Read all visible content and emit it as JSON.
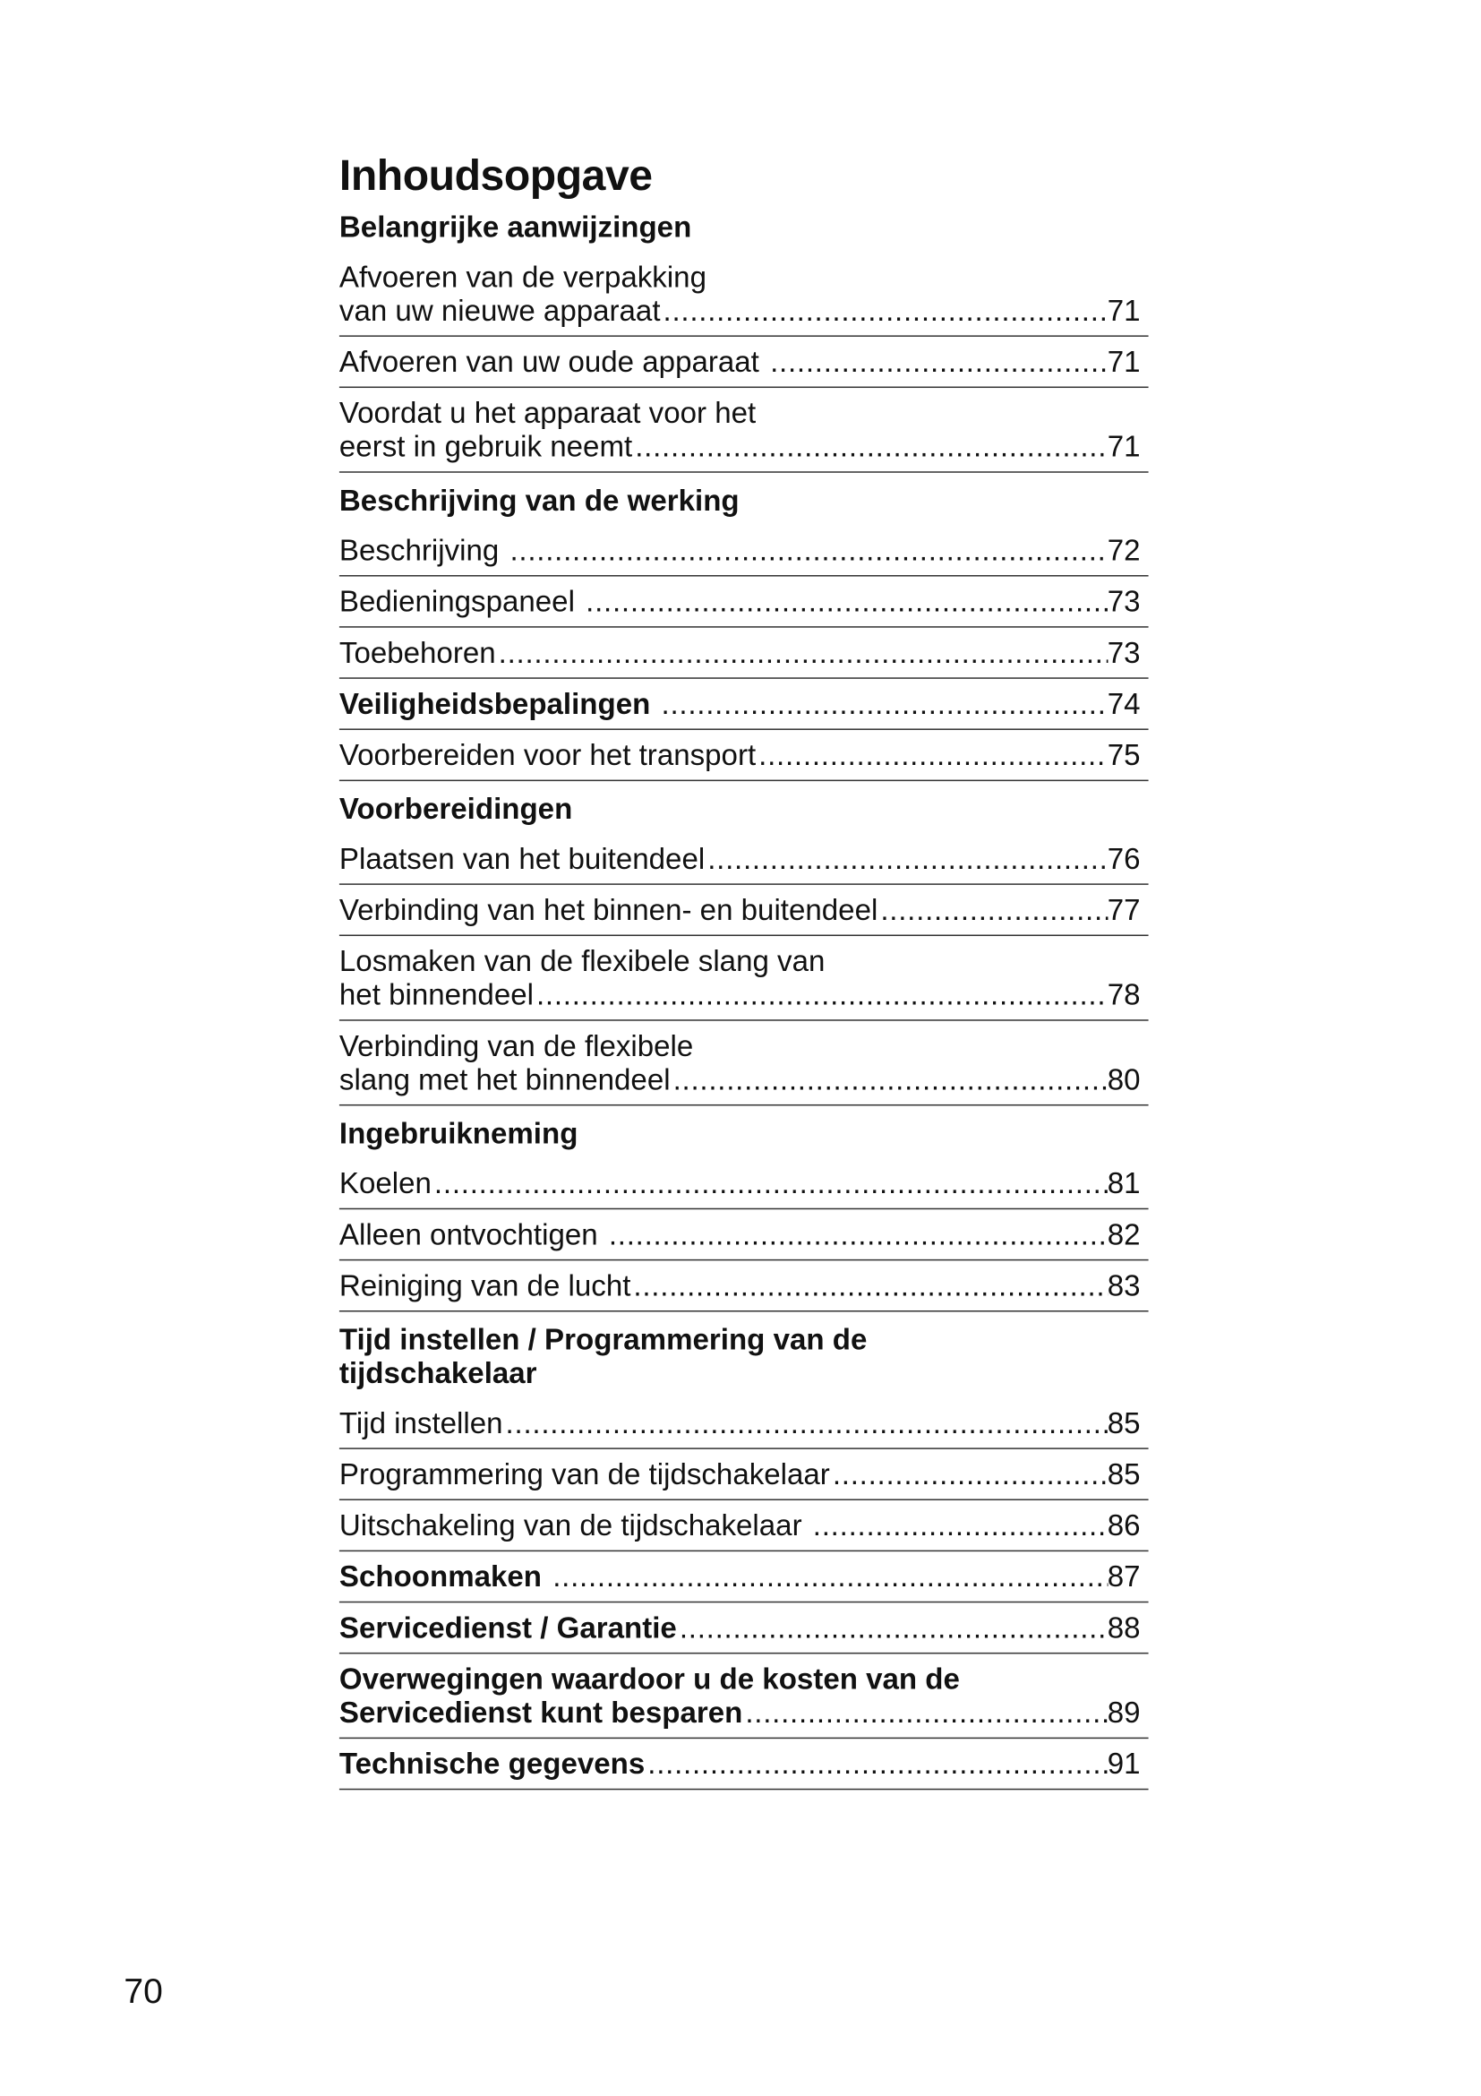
{
  "title": "Inhoudsopgave",
  "page_number": "70",
  "sections": [
    {
      "type": "heading",
      "lines": [
        "Belangrijke aanwijzingen"
      ]
    },
    {
      "type": "entry",
      "lines": [
        "Afvoeren van de verpakking",
        "van uw nieuwe apparaat"
      ],
      "page": "71"
    },
    {
      "type": "entry",
      "lines": [
        "Afvoeren van uw oude apparaat "
      ],
      "page": "71"
    },
    {
      "type": "entry",
      "lines": [
        "Voordat u het apparaat voor het",
        "eerst in gebruik neemt"
      ],
      "page": "71"
    },
    {
      "type": "heading",
      "lines": [
        "Beschrijving van de werking"
      ]
    },
    {
      "type": "entry",
      "lines": [
        "Beschrijving "
      ],
      "page": "72"
    },
    {
      "type": "entry",
      "lines": [
        "Bedieningspaneel "
      ],
      "page": "73"
    },
    {
      "type": "entry",
      "lines": [
        "Toebehoren"
      ],
      "page": "73"
    },
    {
      "type": "entry",
      "bold": true,
      "lines": [
        "Veiligheidsbepalingen "
      ],
      "page": "74"
    },
    {
      "type": "entry",
      "lines": [
        "Voorbereiden voor het transport"
      ],
      "page": "75"
    },
    {
      "type": "heading",
      "lines": [
        "Voorbereidingen"
      ]
    },
    {
      "type": "entry",
      "lines": [
        "Plaatsen van het buitendeel"
      ],
      "page": "76"
    },
    {
      "type": "entry",
      "lines": [
        "Verbinding van het binnen- en buitendeel"
      ],
      "page": "77"
    },
    {
      "type": "entry",
      "lines": [
        "Losmaken van de flexibele slang van",
        "het binnendeel"
      ],
      "page": "78"
    },
    {
      "type": "entry",
      "lines": [
        "Verbinding van de flexibele",
        "slang met het binnendeel"
      ],
      "page": "80"
    },
    {
      "type": "heading",
      "lines": [
        "Ingebruikneming"
      ]
    },
    {
      "type": "entry",
      "lines": [
        "Koelen"
      ],
      "page": "81"
    },
    {
      "type": "entry",
      "lines": [
        "Alleen ontvochtigen "
      ],
      "page": "82"
    },
    {
      "type": "entry",
      "lines": [
        "Reiniging van de lucht"
      ],
      "page": "83"
    },
    {
      "type": "heading",
      "lines": [
        "Tijd instellen / Programmering van de",
        "tijdschakelaar"
      ]
    },
    {
      "type": "entry",
      "lines": [
        "Tijd instellen"
      ],
      "page": "85"
    },
    {
      "type": "entry",
      "lines": [
        "Programmering van de tijdschakelaar"
      ],
      "page": "85"
    },
    {
      "type": "entry",
      "lines": [
        "Uitschakeling van de tijdschakelaar "
      ],
      "page": "86"
    },
    {
      "type": "entry",
      "bold": true,
      "lines": [
        "Schoonmaken "
      ],
      "page": "87"
    },
    {
      "type": "entry",
      "bold": true,
      "lines": [
        "Servicedienst / Garantie"
      ],
      "page": "88"
    },
    {
      "type": "entry",
      "bold": true,
      "lines": [
        "Overwegingen waardoor u de kosten van de",
        "Servicedienst kunt besparen"
      ],
      "page": "89"
    },
    {
      "type": "entry",
      "bold": true,
      "lines": [
        "Technische gegevens"
      ],
      "page": "91"
    }
  ]
}
